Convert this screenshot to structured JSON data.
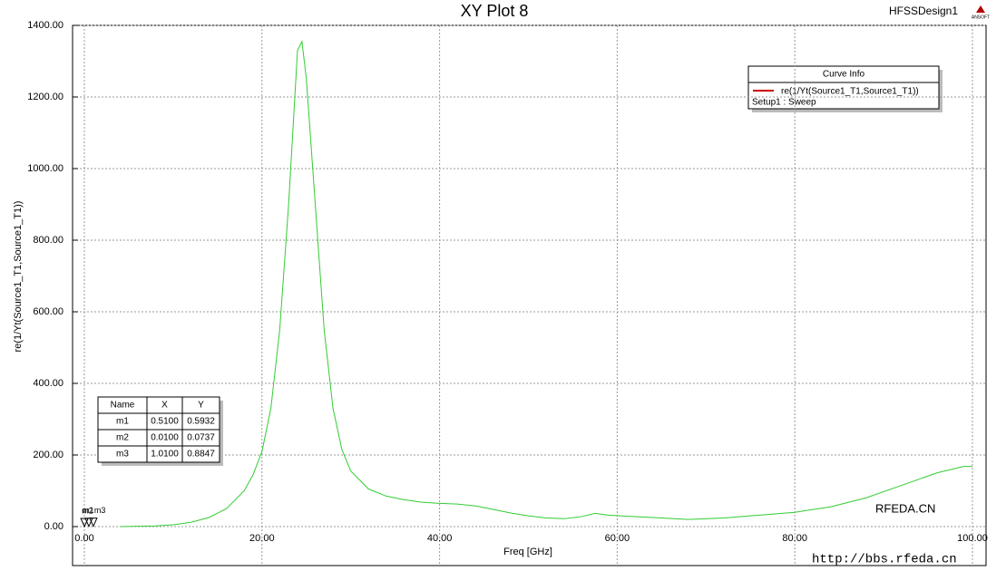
{
  "chart_data": {
    "type": "line",
    "title": "XY Plot 8",
    "design_name": "HFSSDesign1",
    "logo": "ANSOFT",
    "x_label": "Freq [GHz]",
    "y_label": "re(1/Yt(Source1_T1,Source1_T1))",
    "xlim": [
      0,
      100
    ],
    "ylim": [
      0,
      1400
    ],
    "xticks": [
      {
        "value": 0,
        "label": "0.00"
      },
      {
        "value": 20,
        "label": "20.00"
      },
      {
        "value": 40,
        "label": "40.00"
      },
      {
        "value": 60,
        "label": "60.00"
      },
      {
        "value": 80,
        "label": "80.00"
      },
      {
        "value": 100,
        "label": "100.00"
      }
    ],
    "yticks": [
      {
        "value": 0,
        "label": "0.00"
      },
      {
        "value": 200,
        "label": "200.00"
      },
      {
        "value": 400,
        "label": "400.00"
      },
      {
        "value": 600,
        "label": "600.00"
      },
      {
        "value": 800,
        "label": "800.00"
      },
      {
        "value": 1000,
        "label": "1000.00"
      },
      {
        "value": 1200,
        "label": "1200.00"
      },
      {
        "value": 1400,
        "label": "1400.00"
      }
    ],
    "grid": true,
    "x": [
      4,
      8,
      10,
      12,
      14,
      16,
      18,
      19,
      20,
      21,
      22,
      23,
      24,
      24.5,
      25,
      26,
      27,
      28,
      29,
      30,
      32,
      34,
      36,
      38,
      40,
      42,
      44,
      46,
      48,
      50,
      52,
      54,
      56,
      57.5,
      59,
      62,
      65,
      68,
      72,
      76,
      80,
      84,
      88,
      92,
      96,
      99,
      100
    ],
    "series": [
      {
        "name": "re(1/Yt(Source1_T1,Source1_T1))",
        "subtitle": "Setup1 : Sweep",
        "color": "#33cc33",
        "legend_color": "#cc0000",
        "values": [
          0,
          2,
          5,
          12,
          25,
          50,
          100,
          145,
          210,
          330,
          550,
          900,
          1330,
          1355,
          1250,
          900,
          550,
          330,
          215,
          155,
          105,
          85,
          75,
          68,
          65,
          63,
          58,
          48,
          38,
          30,
          24,
          22,
          28,
          37,
          32,
          28,
          24,
          20,
          24,
          32,
          40,
          55,
          80,
          115,
          150,
          168,
          168
        ]
      }
    ],
    "legend_title": "Curve Info",
    "markers": {
      "headers": [
        "Name",
        "X",
        "Y"
      ],
      "names": [
        "m1",
        "m2",
        "m3"
      ],
      "x": [
        0.51,
        0.01,
        1.01
      ],
      "y": [
        0.5932,
        0.0737,
        0.8847
      ],
      "x_labels": [
        "0.5100",
        "0.0100",
        "1.0100"
      ],
      "y_labels": [
        "0.5932",
        "0.0737",
        "0.8847"
      ]
    },
    "watermark": [
      "RFEDA.CN",
      "http://bbs.rfeda.cn"
    ]
  }
}
